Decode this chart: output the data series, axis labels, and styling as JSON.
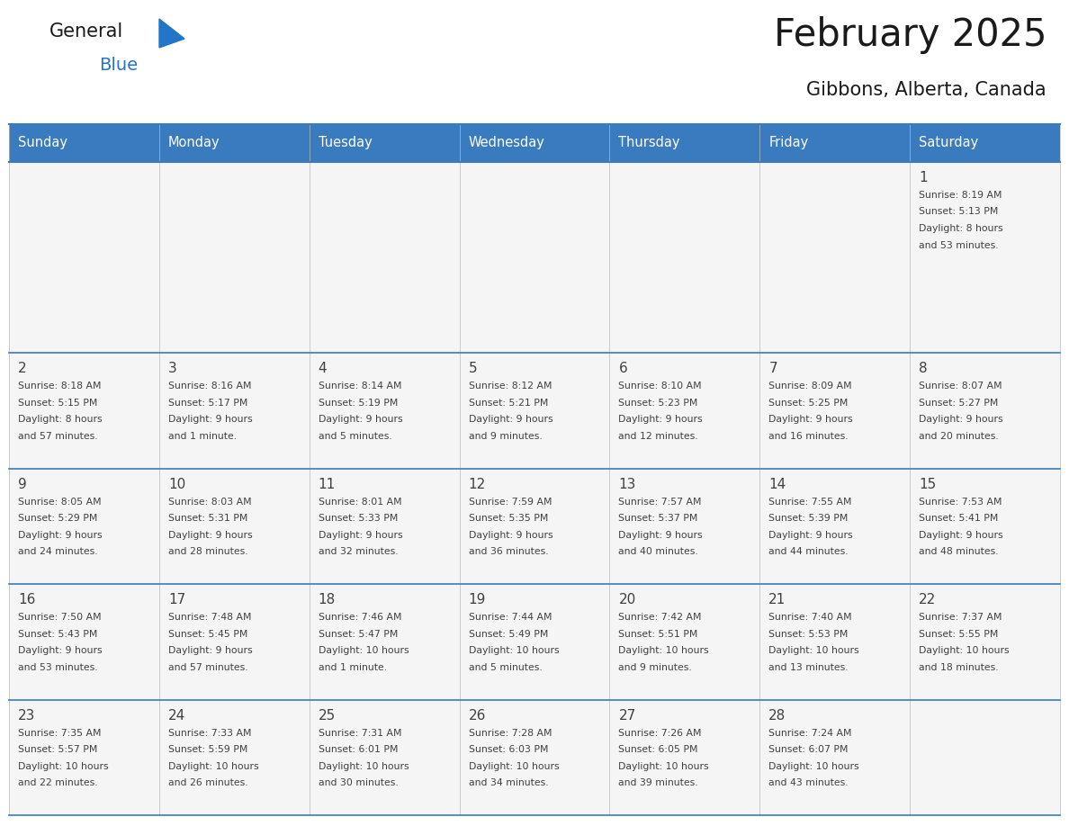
{
  "title": "February 2025",
  "subtitle": "Gibbons, Alberta, Canada",
  "header_bg": "#3A7BBF",
  "header_text_color": "#FFFFFF",
  "cell_bg": "#F5F5F5",
  "border_color": "#3A7BBF",
  "text_color": "#404040",
  "day_headers": [
    "Sunday",
    "Monday",
    "Tuesday",
    "Wednesday",
    "Thursday",
    "Friday",
    "Saturday"
  ],
  "weeks": [
    [
      {
        "day": "",
        "info": ""
      },
      {
        "day": "",
        "info": ""
      },
      {
        "day": "",
        "info": ""
      },
      {
        "day": "",
        "info": ""
      },
      {
        "day": "",
        "info": ""
      },
      {
        "day": "",
        "info": ""
      },
      {
        "day": "1",
        "info": "Sunrise: 8:19 AM\nSunset: 5:13 PM\nDaylight: 8 hours\nand 53 minutes."
      }
    ],
    [
      {
        "day": "2",
        "info": "Sunrise: 8:18 AM\nSunset: 5:15 PM\nDaylight: 8 hours\nand 57 minutes."
      },
      {
        "day": "3",
        "info": "Sunrise: 8:16 AM\nSunset: 5:17 PM\nDaylight: 9 hours\nand 1 minute."
      },
      {
        "day": "4",
        "info": "Sunrise: 8:14 AM\nSunset: 5:19 PM\nDaylight: 9 hours\nand 5 minutes."
      },
      {
        "day": "5",
        "info": "Sunrise: 8:12 AM\nSunset: 5:21 PM\nDaylight: 9 hours\nand 9 minutes."
      },
      {
        "day": "6",
        "info": "Sunrise: 8:10 AM\nSunset: 5:23 PM\nDaylight: 9 hours\nand 12 minutes."
      },
      {
        "day": "7",
        "info": "Sunrise: 8:09 AM\nSunset: 5:25 PM\nDaylight: 9 hours\nand 16 minutes."
      },
      {
        "day": "8",
        "info": "Sunrise: 8:07 AM\nSunset: 5:27 PM\nDaylight: 9 hours\nand 20 minutes."
      }
    ],
    [
      {
        "day": "9",
        "info": "Sunrise: 8:05 AM\nSunset: 5:29 PM\nDaylight: 9 hours\nand 24 minutes."
      },
      {
        "day": "10",
        "info": "Sunrise: 8:03 AM\nSunset: 5:31 PM\nDaylight: 9 hours\nand 28 minutes."
      },
      {
        "day": "11",
        "info": "Sunrise: 8:01 AM\nSunset: 5:33 PM\nDaylight: 9 hours\nand 32 minutes."
      },
      {
        "day": "12",
        "info": "Sunrise: 7:59 AM\nSunset: 5:35 PM\nDaylight: 9 hours\nand 36 minutes."
      },
      {
        "day": "13",
        "info": "Sunrise: 7:57 AM\nSunset: 5:37 PM\nDaylight: 9 hours\nand 40 minutes."
      },
      {
        "day": "14",
        "info": "Sunrise: 7:55 AM\nSunset: 5:39 PM\nDaylight: 9 hours\nand 44 minutes."
      },
      {
        "day": "15",
        "info": "Sunrise: 7:53 AM\nSunset: 5:41 PM\nDaylight: 9 hours\nand 48 minutes."
      }
    ],
    [
      {
        "day": "16",
        "info": "Sunrise: 7:50 AM\nSunset: 5:43 PM\nDaylight: 9 hours\nand 53 minutes."
      },
      {
        "day": "17",
        "info": "Sunrise: 7:48 AM\nSunset: 5:45 PM\nDaylight: 9 hours\nand 57 minutes."
      },
      {
        "day": "18",
        "info": "Sunrise: 7:46 AM\nSunset: 5:47 PM\nDaylight: 10 hours\nand 1 minute."
      },
      {
        "day": "19",
        "info": "Sunrise: 7:44 AM\nSunset: 5:49 PM\nDaylight: 10 hours\nand 5 minutes."
      },
      {
        "day": "20",
        "info": "Sunrise: 7:42 AM\nSunset: 5:51 PM\nDaylight: 10 hours\nand 9 minutes."
      },
      {
        "day": "21",
        "info": "Sunrise: 7:40 AM\nSunset: 5:53 PM\nDaylight: 10 hours\nand 13 minutes."
      },
      {
        "day": "22",
        "info": "Sunrise: 7:37 AM\nSunset: 5:55 PM\nDaylight: 10 hours\nand 18 minutes."
      }
    ],
    [
      {
        "day": "23",
        "info": "Sunrise: 7:35 AM\nSunset: 5:57 PM\nDaylight: 10 hours\nand 22 minutes."
      },
      {
        "day": "24",
        "info": "Sunrise: 7:33 AM\nSunset: 5:59 PM\nDaylight: 10 hours\nand 26 minutes."
      },
      {
        "day": "25",
        "info": "Sunrise: 7:31 AM\nSunset: 6:01 PM\nDaylight: 10 hours\nand 30 minutes."
      },
      {
        "day": "26",
        "info": "Sunrise: 7:28 AM\nSunset: 6:03 PM\nDaylight: 10 hours\nand 34 minutes."
      },
      {
        "day": "27",
        "info": "Sunrise: 7:26 AM\nSunset: 6:05 PM\nDaylight: 10 hours\nand 39 minutes."
      },
      {
        "day": "28",
        "info": "Sunrise: 7:24 AM\nSunset: 6:07 PM\nDaylight: 10 hours\nand 43 minutes."
      },
      {
        "day": "",
        "info": ""
      }
    ]
  ]
}
